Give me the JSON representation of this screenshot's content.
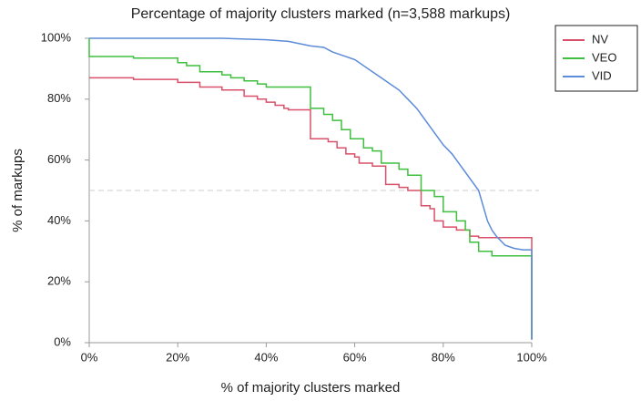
{
  "chart_data": {
    "type": "line",
    "title": "Percentage of majority clusters marked (n=3,588 markups)",
    "xlabel": "% of majority clusters marked",
    "ylabel": "% of markups",
    "xlim": [
      0,
      100
    ],
    "ylim": [
      0,
      100
    ],
    "xticks": [
      {
        "value": 0,
        "label": "0%"
      },
      {
        "value": 20,
        "label": "20%"
      },
      {
        "value": 40,
        "label": "40%"
      },
      {
        "value": 60,
        "label": "60%"
      },
      {
        "value": 80,
        "label": "80%"
      },
      {
        "value": 100,
        "label": "100%"
      }
    ],
    "yticks": [
      {
        "value": 0,
        "label": "0%"
      },
      {
        "value": 20,
        "label": "20%"
      },
      {
        "value": 40,
        "label": "40%"
      },
      {
        "value": 60,
        "label": "60%"
      },
      {
        "value": 80,
        "label": "80%"
      },
      {
        "value": 100,
        "label": "100%"
      }
    ],
    "reference_line": 50,
    "legend": "upper right",
    "series": [
      {
        "name": "NV",
        "color": "#d9506a",
        "x": [
          0,
          10,
          10,
          20,
          20,
          25,
          25,
          30,
          30,
          35,
          35,
          38,
          38,
          40,
          40,
          42,
          42,
          44,
          44,
          45,
          45,
          50,
          50,
          54,
          54,
          56,
          56,
          58,
          58,
          60,
          60,
          61,
          61,
          64,
          64,
          67,
          67,
          70,
          70,
          72,
          72,
          75,
          75,
          77,
          77,
          78,
          78,
          80,
          80,
          83,
          83,
          86,
          86,
          88,
          88,
          100,
          100
        ],
        "values": [
          87,
          87,
          86.5,
          86.5,
          85.5,
          85.5,
          84,
          84,
          83,
          83,
          81,
          81,
          80,
          80,
          79,
          79,
          78,
          78,
          77,
          77,
          76.5,
          76.5,
          67,
          67,
          66,
          66,
          64,
          64,
          62,
          62,
          61,
          61,
          59,
          59,
          58,
          58,
          52,
          52,
          51,
          51,
          50,
          50,
          45,
          45,
          44,
          44,
          40,
          40,
          38,
          38,
          37,
          37,
          35,
          35,
          34.5,
          34.5,
          1
        ]
      },
      {
        "name": "VEO",
        "color": "#3fbf3f",
        "x": [
          0,
          0,
          10,
          10,
          20,
          20,
          22,
          22,
          25,
          25,
          30,
          30,
          32,
          32,
          35,
          35,
          38,
          38,
          40,
          40,
          50,
          50,
          53,
          53,
          55,
          55,
          57,
          57,
          59,
          59,
          62,
          62,
          64,
          64,
          66,
          66,
          70,
          70,
          72,
          72,
          75,
          75,
          78,
          78,
          80,
          80,
          83,
          83,
          85,
          85,
          86,
          86,
          88,
          88,
          91,
          91,
          100,
          100
        ],
        "values": [
          100,
          94,
          94,
          93.5,
          93.5,
          92,
          92,
          91,
          91,
          89,
          89,
          88,
          88,
          87,
          87,
          86,
          86,
          85,
          85,
          84,
          84,
          77,
          77,
          75,
          75,
          73,
          73,
          70,
          70,
          67,
          67,
          64,
          64,
          63,
          63,
          59,
          59,
          57,
          57,
          55,
          55,
          50,
          50,
          48,
          48,
          43,
          43,
          40,
          40,
          37,
          37,
          33,
          33,
          30,
          30,
          28.5,
          28.5,
          1
        ]
      },
      {
        "name": "VID",
        "color": "#5b8bd9",
        "x": [
          0,
          30,
          40,
          45,
          50,
          53,
          55,
          58,
          60,
          62,
          64,
          66,
          68,
          70,
          72,
          74,
          76,
          78,
          80,
          82,
          84,
          86,
          87,
          88,
          89,
          90,
          91,
          92,
          94,
          96,
          98,
          100,
          100
        ],
        "values": [
          100,
          100,
          99.5,
          99,
          97.5,
          97,
          95.5,
          94,
          93,
          91,
          89,
          87,
          85,
          83,
          80,
          77,
          73,
          69,
          65,
          62,
          58,
          54,
          52,
          50,
          45,
          40,
          37,
          35,
          32,
          31,
          30.5,
          30.5,
          1
        ]
      }
    ]
  }
}
